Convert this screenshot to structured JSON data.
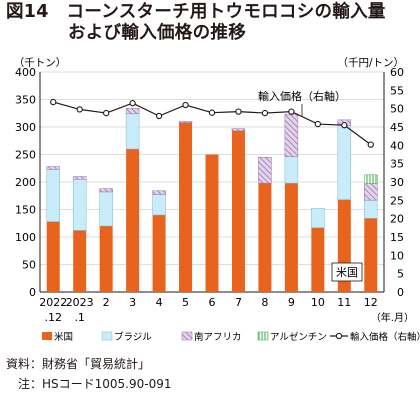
{
  "title": {
    "line1": "図14　コーンスターチ用トウモロコシの輸入量",
    "line2": "および輸入価格の推移"
  },
  "source": {
    "line1": "資料：財務省「貿易統計」",
    "line2": "　注：HSコード1005.90-091"
  },
  "chart_data": {
    "type": "bar",
    "stacked": true,
    "categories": [
      [
        "2022",
        ".12"
      ],
      [
        "2023",
        ".1"
      ],
      [
        "2"
      ],
      [
        "3"
      ],
      [
        "4"
      ],
      [
        "5"
      ],
      [
        "6"
      ],
      [
        "7"
      ],
      [
        "8"
      ],
      [
        "9"
      ],
      [
        "10"
      ],
      [
        "11"
      ],
      [
        "12"
      ]
    ],
    "x_unit": "（年.月）",
    "y_left": {
      "unit": "（千トン）",
      "min": 0,
      "max": 400,
      "ticks": [
        0,
        50,
        100,
        150,
        200,
        250,
        300,
        350,
        400
      ]
    },
    "y_right": {
      "unit": "（千円/トン）",
      "min": 0,
      "max": 60,
      "ticks": [
        0,
        5,
        10,
        15,
        20,
        25,
        30,
        35,
        40,
        45,
        50,
        55,
        60
      ]
    },
    "series": [
      {
        "name": "米国",
        "kind": "bar",
        "color": "#e8641e",
        "values": [
          128,
          112,
          120,
          260,
          140,
          308,
          250,
          293,
          198,
          198,
          117,
          168,
          134
        ]
      },
      {
        "name": "ブラジル",
        "kind": "bar",
        "color": "#c8ecf8",
        "values": [
          95,
          93,
          62,
          64,
          37,
          0,
          0,
          0,
          0,
          48,
          35,
          135,
          33
        ]
      },
      {
        "name": "南アフリカ",
        "kind": "bar",
        "color": "#c9a9d6",
        "values": [
          5,
          5,
          6,
          10,
          7,
          2,
          0,
          4,
          47,
          77,
          0,
          10,
          30
        ]
      },
      {
        "name": "アルゼンチン",
        "kind": "bar",
        "color": "#c6e8c2",
        "values": [
          0,
          0,
          0,
          0,
          0,
          0,
          0,
          0,
          0,
          0,
          0,
          0,
          16
        ]
      },
      {
        "name": "輸入価格（右軸）",
        "kind": "line",
        "axis": "right",
        "color": "#231815",
        "values": [
          51.8,
          49.8,
          48.8,
          51.5,
          48.0,
          51.0,
          48.9,
          49.2,
          48.8,
          49.2,
          45.8,
          45.5,
          40.2
        ]
      }
    ],
    "annotations": [
      {
        "text": "輸入価格（右軸）",
        "target": "輸入価格（右軸）"
      },
      {
        "text": "米国",
        "target": "米国"
      }
    ],
    "legend": {
      "position": "bottom"
    },
    "grid": true
  }
}
